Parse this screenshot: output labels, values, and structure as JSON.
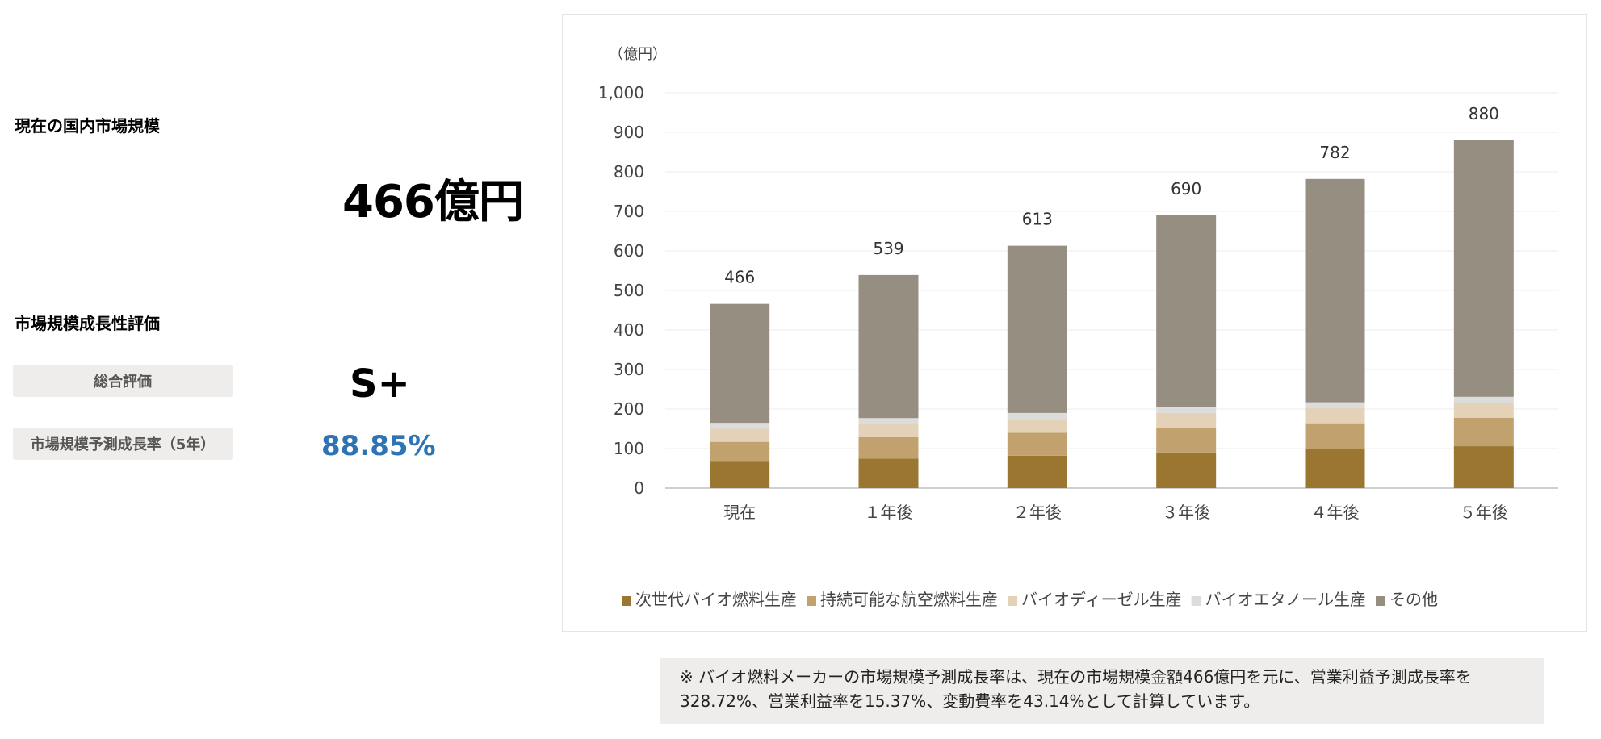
{
  "summary": {
    "market_size_label": "現在の国内市場規模",
    "market_size_value": "466億円",
    "growth_eval_label": "市場規模成長性評価",
    "overall_label": "総合評価",
    "overall_value": "S+",
    "rate_label": "市場規模予測成長率（5年）",
    "rate_value": "88.85%"
  },
  "colors": {
    "next_gen": "#9b7631",
    "saf": "#c1a26f",
    "biodiesel": "#e3d2b8",
    "bioethanol": "#dcdcdc",
    "other": "#978e82",
    "rate_text": "#2e74b5"
  },
  "chart_data": {
    "type": "bar",
    "stacked": true,
    "unit_label": "（億円）",
    "categories": [
      "現在",
      "１年後",
      "２年後",
      "３年後",
      "４年後",
      "５年後"
    ],
    "totals": [
      466,
      539,
      613,
      690,
      782,
      880
    ],
    "ylim": [
      0,
      1000
    ],
    "yticks": [
      0,
      100,
      200,
      300,
      400,
      500,
      600,
      700,
      800,
      900,
      1000
    ],
    "ytick_labels": [
      "0",
      "100",
      "200",
      "300",
      "400",
      "500",
      "600",
      "700",
      "800",
      "900",
      "1,000"
    ],
    "grid": true,
    "legend_position": "bottom",
    "series": [
      {
        "name": "次世代バイオ燃料生産",
        "color_key": "next_gen",
        "values": [
          67,
          75,
          82,
          90,
          98,
          106
        ]
      },
      {
        "name": "持続可能な航空燃料生産",
        "color_key": "saf",
        "values": [
          50,
          54,
          58,
          62,
          66,
          72
        ]
      },
      {
        "name": "バイオディーゼル生産",
        "color_key": "biodiesel",
        "values": [
          33,
          33,
          35,
          38,
          38,
          38
        ]
      },
      {
        "name": "バイオエタノール生産",
        "color_key": "bioethanol",
        "values": [
          15,
          15,
          15,
          15,
          15,
          15
        ]
      },
      {
        "name": "その他",
        "color_key": "other",
        "values": [
          301,
          362,
          423,
          485,
          565,
          649
        ]
      }
    ]
  },
  "note": {
    "text": "※ バイオ燃料メーカーの市場規模予測成長率は、現在の市場規模金額466億円を元に、営業利益予測成長率を328.72%、営業利益率を15.37%、変動費率を43.14%として計算しています。"
  }
}
